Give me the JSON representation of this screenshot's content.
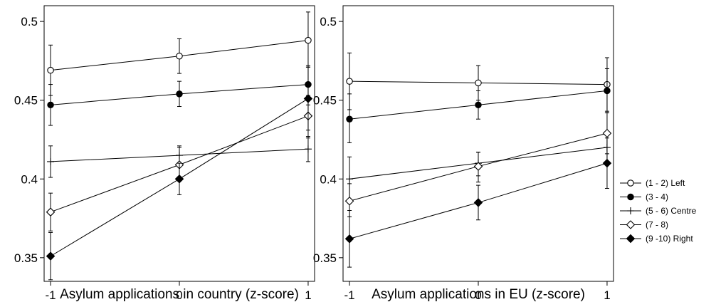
{
  "chart_data": [
    {
      "type": "line",
      "xlabel": "Asylum applications in country (z-score)",
      "ylabel": "",
      "x": [
        -1,
        0,
        1
      ],
      "xticks": [
        "-1",
        "0",
        "1"
      ],
      "xlim": [
        -1.05,
        1.05
      ],
      "ylim": [
        0.335,
        0.51
      ],
      "yticks": [
        0.35,
        0.4,
        0.45,
        0.5
      ],
      "ytick_labels": [
        "0.35",
        "0.4",
        "0.45",
        "0.5"
      ],
      "grid": false,
      "series": [
        {
          "name": "(1 - 2) Left",
          "marker": "circle-open",
          "values": [
            0.469,
            0.478,
            0.488
          ],
          "ci_low": [
            0.453,
            0.467,
            0.471
          ],
          "ci_high": [
            0.485,
            0.489,
            0.506
          ]
        },
        {
          "name": "(3 - 4)",
          "marker": "circle-filled",
          "values": [
            0.447,
            0.454,
            0.46
          ],
          "ci_low": [
            0.434,
            0.446,
            0.447
          ],
          "ci_high": [
            0.46,
            0.462,
            0.472
          ]
        },
        {
          "name": "(5 - 6) Centre",
          "marker": "plus",
          "values": [
            0.411,
            0.415,
            0.419
          ],
          "ci_low": [
            0.401,
            0.408,
            0.411
          ],
          "ci_high": [
            0.421,
            0.421,
            0.427
          ]
        },
        {
          "name": "(7 - 8)",
          "marker": "diamond-open",
          "values": [
            0.379,
            0.409,
            0.44
          ],
          "ci_low": [
            0.367,
            0.399,
            0.426
          ],
          "ci_high": [
            0.391,
            0.42,
            0.453
          ]
        },
        {
          "name": "(9 -10) Right",
          "marker": "diamond-filled",
          "values": [
            0.351,
            0.4,
            0.451
          ],
          "ci_low": [
            0.336,
            0.39,
            0.431
          ],
          "ci_high": [
            0.366,
            0.41,
            0.471
          ]
        }
      ]
    },
    {
      "type": "line",
      "xlabel": "Asylum applications in EU (z-score)",
      "ylabel": "",
      "x": [
        -1,
        0,
        1
      ],
      "xticks": [
        "-1",
        "0",
        "1"
      ],
      "xlim": [
        -1.05,
        1.05
      ],
      "ylim": [
        0.335,
        0.51
      ],
      "yticks": [
        0.35,
        0.4,
        0.45,
        0.5
      ],
      "ytick_labels": [
        "0.35",
        "0.4",
        "0.45",
        "0.5"
      ],
      "grid": false,
      "series": [
        {
          "name": "(1 - 2) Left",
          "marker": "circle-open",
          "values": [
            0.462,
            0.461,
            0.46
          ],
          "ci_low": [
            0.444,
            0.45,
            0.443
          ],
          "ci_high": [
            0.48,
            0.472,
            0.477
          ]
        },
        {
          "name": "(3 - 4)",
          "marker": "circle-filled",
          "values": [
            0.438,
            0.447,
            0.456
          ],
          "ci_low": [
            0.423,
            0.438,
            0.442
          ],
          "ci_high": [
            0.454,
            0.456,
            0.47
          ]
        },
        {
          "name": "(5 - 6) Centre",
          "marker": "plus",
          "values": [
            0.4,
            0.41,
            0.42
          ],
          "ci_low": [
            0.386,
            0.402,
            0.41
          ],
          "ci_high": [
            0.414,
            0.417,
            0.43
          ]
        },
        {
          "name": "(7 - 8)",
          "marker": "diamond-open",
          "values": [
            0.386,
            0.408,
            0.429
          ],
          "ci_low": [
            0.376,
            0.398,
            0.416
          ],
          "ci_high": [
            0.397,
            0.417,
            0.442
          ]
        },
        {
          "name": "(9 -10) Right",
          "marker": "diamond-filled",
          "values": [
            0.362,
            0.385,
            0.41
          ],
          "ci_low": [
            0.344,
            0.374,
            0.394
          ],
          "ci_high": [
            0.38,
            0.396,
            0.426
          ]
        }
      ]
    }
  ],
  "legend": {
    "position": "right",
    "items": [
      "(1 - 2) Left",
      "(3 - 4)",
      "(5 - 6) Centre",
      "(7 - 8)",
      "(9 -10) Right"
    ]
  },
  "colors": {
    "ink": "#000000",
    "background": "#ffffff"
  }
}
